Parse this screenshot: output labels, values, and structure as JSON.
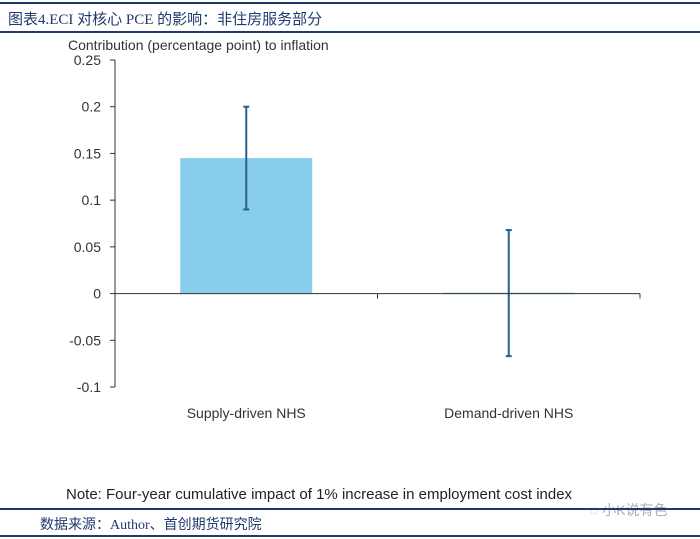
{
  "header": {
    "title": "图表4.ECI 对核心 PCE 的影响：非住房服务部分"
  },
  "footer": {
    "note": "Note: Four-year cumulative impact of 1% increase in employment cost index",
    "source": "数据来源：Author、首创期货研究院",
    "watermark": "小K说有色"
  },
  "colors": {
    "bar": "#87ceeb",
    "error": "#2b5f8a",
    "rule": "#1f3a6e"
  },
  "chart_data": {
    "type": "bar",
    "ylabel": "Contribution (percentage point) to inflation",
    "categories": [
      "Supply-driven NHS",
      "Demand-driven NHS"
    ],
    "values": [
      0.145,
      0.001
    ],
    "error_low": [
      0.09,
      -0.067
    ],
    "error_high": [
      0.2,
      0.068
    ],
    "ylim": [
      -0.1,
      0.25
    ],
    "yticks": [
      -0.1,
      -0.05,
      0,
      0.05,
      0.1,
      0.15,
      0.2,
      0.25
    ],
    "ytick_labels": [
      "-0.1",
      "-0.05",
      "0",
      "0.05",
      "0.1",
      "0.15",
      "0.2",
      "0.25"
    ],
    "grid": false
  }
}
